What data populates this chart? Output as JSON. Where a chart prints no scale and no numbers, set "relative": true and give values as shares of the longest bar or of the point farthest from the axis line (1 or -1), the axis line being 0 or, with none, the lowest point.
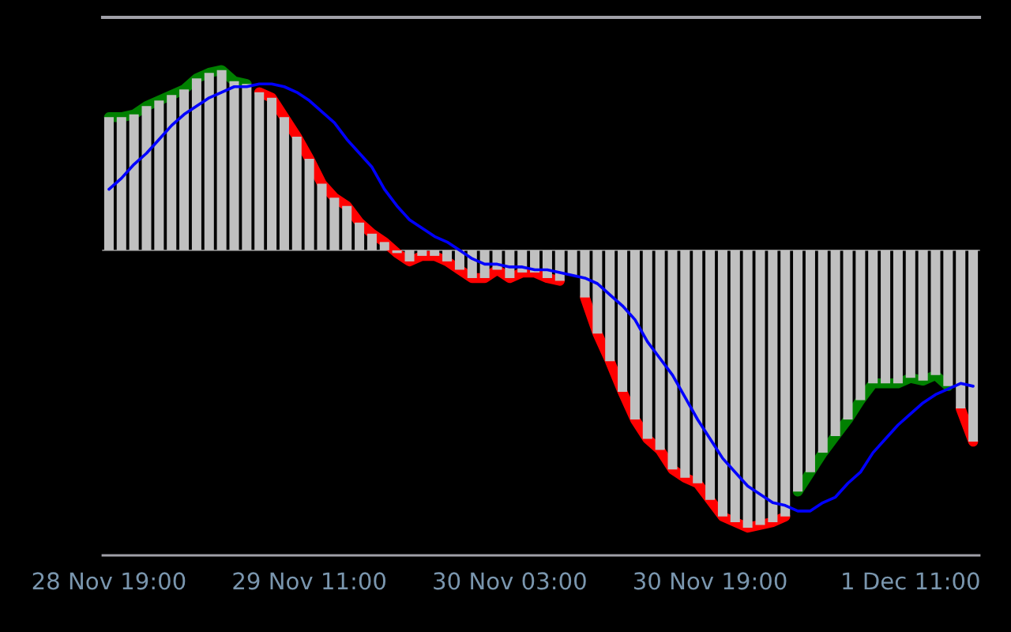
{
  "chart_data": {
    "type": "bar",
    "relative": true,
    "categories": [
      "28 Nov 19:00",
      null,
      null,
      null,
      null,
      null,
      null,
      null,
      null,
      null,
      null,
      null,
      null,
      null,
      null,
      null,
      "29 Nov 11:00",
      null,
      null,
      null,
      null,
      null,
      null,
      null,
      null,
      null,
      null,
      null,
      null,
      null,
      null,
      null,
      "30 Nov 03:00",
      null,
      null,
      null,
      null,
      null,
      null,
      null,
      null,
      null,
      null,
      null,
      null,
      null,
      null,
      null,
      "30 Nov 19:00",
      null,
      null,
      null,
      null,
      null,
      null,
      null,
      null,
      null,
      null,
      null,
      null,
      null,
      null,
      null,
      "1 Dec 11:00",
      null,
      null,
      null,
      null,
      null
    ],
    "series": [
      {
        "type": "line",
        "color": "#008000",
        "values": [
          0.48,
          0.48,
          0.49,
          0.52,
          0.54,
          0.56,
          0.58,
          0.62,
          0.64,
          0.65,
          0.61,
          0.6,
          null,
          null,
          null,
          null,
          null,
          null,
          null,
          null,
          null,
          null,
          null,
          null,
          null,
          null,
          null,
          null,
          null,
          null,
          null,
          null,
          null,
          null,
          null,
          null,
          null,
          null,
          null,
          null,
          null,
          null,
          null,
          null,
          null,
          null,
          null,
          null,
          null,
          null,
          null,
          null,
          null,
          null,
          null,
          -0.87,
          -0.8,
          -0.73,
          -0.67,
          -0.61,
          -0.54,
          -0.48,
          -0.48,
          -0.48,
          -0.46,
          -0.47,
          -0.45,
          -0.49,
          null,
          null
        ]
      },
      {
        "type": "line",
        "color": "#ff0000",
        "values": [
          null,
          null,
          null,
          null,
          null,
          null,
          null,
          null,
          null,
          null,
          null,
          null,
          0.57,
          0.55,
          0.48,
          0.41,
          0.33,
          0.24,
          0.19,
          0.16,
          0.1,
          0.06,
          0.03,
          -0.01,
          -0.04,
          -0.02,
          -0.02,
          -0.04,
          -0.07,
          -0.1,
          -0.1,
          -0.07,
          -0.1,
          -0.08,
          -0.08,
          -0.1,
          -0.11,
          null,
          -0.17,
          -0.3,
          -0.4,
          -0.51,
          -0.61,
          -0.68,
          -0.72,
          -0.79,
          -0.82,
          -0.84,
          -0.9,
          -0.96,
          -0.98,
          -1.0,
          -0.99,
          -0.98,
          -0.96,
          null,
          null,
          null,
          null,
          null,
          null,
          null,
          null,
          null,
          null,
          null,
          null,
          null,
          -0.57,
          -0.69
        ]
      },
      {
        "color": "#c0c0c0",
        "values": [
          0.48,
          0.48,
          0.49,
          0.52,
          0.54,
          0.56,
          0.58,
          0.62,
          0.64,
          0.65,
          0.61,
          0.6,
          0.57,
          0.55,
          0.48,
          0.41,
          0.33,
          0.24,
          0.19,
          0.16,
          0.1,
          0.06,
          0.03,
          -0.01,
          -0.04,
          -0.02,
          -0.02,
          -0.04,
          -0.07,
          -0.1,
          -0.1,
          -0.07,
          -0.1,
          -0.08,
          -0.08,
          -0.1,
          -0.11,
          -0.09,
          -0.17,
          -0.3,
          -0.4,
          -0.51,
          -0.61,
          -0.68,
          -0.72,
          -0.79,
          -0.82,
          -0.84,
          -0.9,
          -0.96,
          -0.98,
          -1.0,
          -0.99,
          -0.98,
          -0.96,
          -0.87,
          -0.8,
          -0.73,
          -0.67,
          -0.61,
          -0.54,
          -0.48,
          -0.48,
          -0.48,
          -0.46,
          -0.47,
          -0.45,
          -0.49,
          -0.57,
          -0.69
        ]
      },
      {
        "type": "line",
        "color": "#0000ff",
        "values": [
          0.22,
          0.26,
          0.31,
          0.35,
          0.4,
          0.45,
          0.49,
          0.52,
          0.55,
          0.57,
          0.59,
          0.59,
          0.6,
          0.6,
          0.59,
          0.57,
          0.54,
          0.5,
          0.46,
          0.4,
          0.35,
          0.3,
          0.22,
          0.16,
          0.11,
          0.08,
          0.05,
          0.03,
          0.0,
          -0.03,
          -0.05,
          -0.05,
          -0.06,
          -0.06,
          -0.07,
          -0.07,
          -0.08,
          -0.09,
          -0.1,
          -0.12,
          -0.16,
          -0.2,
          -0.25,
          -0.33,
          -0.39,
          -0.45,
          -0.53,
          -0.61,
          -0.68,
          -0.75,
          -0.8,
          -0.85,
          -0.88,
          -0.91,
          -0.92,
          -0.94,
          -0.94,
          -0.91,
          -0.89,
          -0.84,
          -0.8,
          -0.73,
          -0.68,
          -0.63,
          -0.59,
          -0.55,
          -0.52,
          -0.5,
          -0.48,
          -0.49
        ]
      }
    ]
  }
}
